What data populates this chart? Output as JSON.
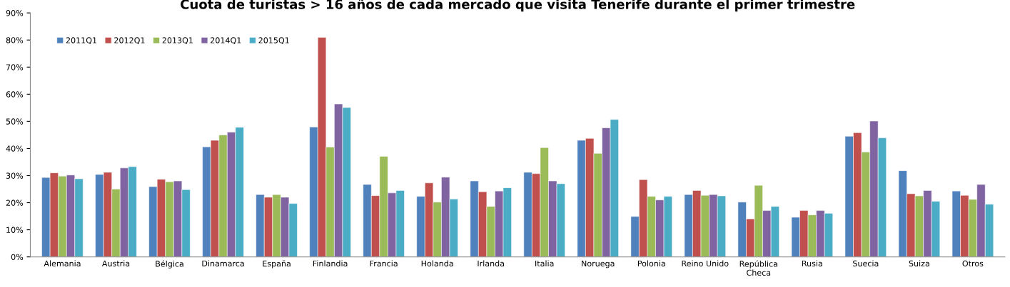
{
  "chart_data": {
    "type": "bar",
    "title": "Cuota de turistas > 16 años de cada mercado que visita Tenerife durante el primer trimestre",
    "categories": [
      "Alemania",
      "Austria",
      "Bélgica",
      "Dinamarca",
      "España",
      "Finlandia",
      "Francia",
      "Holanda",
      "Irlanda",
      "Italia",
      "Noruega",
      "Polonia",
      "Reino Unido",
      "República\nCheca",
      "Rusia",
      "Suecia",
      "Suiza",
      "Otros"
    ],
    "series": [
      {
        "name": "2011Q1",
        "color": "#4f81bd",
        "values": [
          29.3,
          30.4,
          25.9,
          40.6,
          23,
          47.9,
          26.7,
          22.3,
          28,
          31.2,
          43,
          14.9,
          23,
          20.2,
          14.6,
          44.5,
          31.8,
          24.3
        ]
      },
      {
        "name": "2012Q1",
        "color": "#c0504d",
        "values": [
          31,
          31.2,
          28.6,
          43,
          22,
          81,
          22.6,
          27.3,
          24,
          30.7,
          43.7,
          28.5,
          24.5,
          14,
          17.1,
          45.8,
          23.3,
          22.7
        ]
      },
      {
        "name": "2013Q1",
        "color": "#9bbb59",
        "values": [
          29.8,
          25,
          27.7,
          45,
          23,
          40.5,
          37.1,
          20.2,
          18.6,
          40.3,
          38.2,
          22.3,
          22.7,
          26.4,
          15.5,
          38.7,
          22.5,
          21.2
        ]
      },
      {
        "name": "2014Q1",
        "color": "#8064a2",
        "values": [
          30.2,
          32.8,
          28,
          46,
          22,
          56.4,
          23.6,
          29.4,
          24.3,
          28,
          47.6,
          21,
          23,
          17.1,
          17.1,
          50.1,
          24.5,
          26.7
        ]
      },
      {
        "name": "2015Q1",
        "color": "#4bacc6",
        "values": [
          28.8,
          33.3,
          24.8,
          47.8,
          19.7,
          55.1,
          24.5,
          21.3,
          25.5,
          27,
          50.7,
          22.3,
          22.5,
          18.6,
          16.1,
          43.9,
          20.5,
          19.4
        ]
      }
    ],
    "ylim": [
      0,
      90
    ],
    "yticks": [
      {
        "value": 0,
        "label": "0%"
      },
      {
        "value": 10,
        "label": "10%"
      },
      {
        "value": 20,
        "label": "20%"
      },
      {
        "value": 30,
        "label": "30%"
      },
      {
        "value": 40,
        "label": "40%"
      },
      {
        "value": 50,
        "label": "50%"
      },
      {
        "value": 60,
        "label": "60%"
      },
      {
        "value": 70,
        "label": "70%"
      },
      {
        "value": 80,
        "label": "80%"
      },
      {
        "value": 90,
        "label": "90%"
      }
    ],
    "grid": false,
    "legend": "top left"
  }
}
